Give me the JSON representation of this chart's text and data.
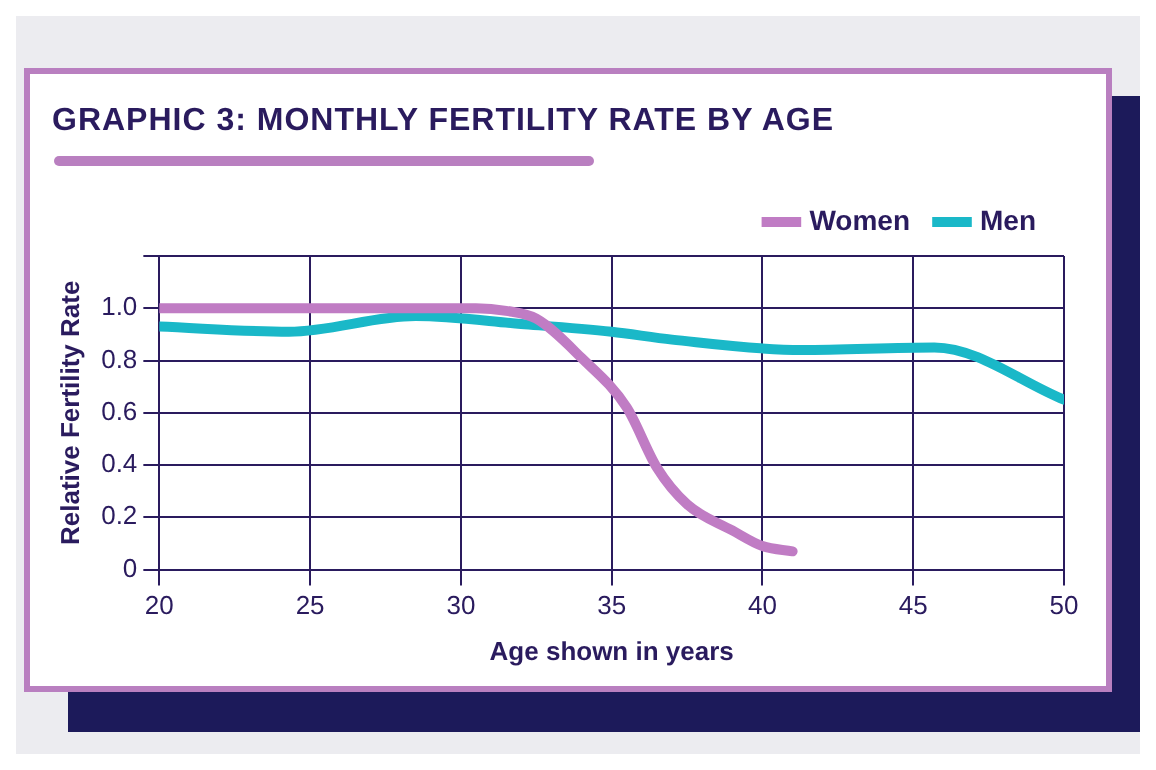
{
  "chart_data": {
    "type": "line",
    "title": "GRAPHIC 3: MONTHLY FERTILITY RATE BY AGE",
    "xlabel": "Age shown in years",
    "ylabel": "Relative Fertility Rate",
    "xlim": [
      20,
      50
    ],
    "xticks": [
      20,
      25,
      30,
      35,
      40,
      45,
      50
    ],
    "ylim": [
      0,
      1.2
    ],
    "yticks": [
      0,
      0.2,
      0.4,
      0.6,
      0.8,
      {
        "value": 1.0,
        "label": "1.0"
      },
      {
        "value": 1.2,
        "label": null
      }
    ],
    "grid": true,
    "legend": "top right",
    "marker": "none",
    "line_style": "solid",
    "series": [
      {
        "name": "Women",
        "color": "#c07cc4",
        "x": [
          20,
          30.5,
          31.5,
          32.5,
          34,
          35.5,
          36.5,
          37.5,
          39,
          40,
          41
        ],
        "values": [
          1.0,
          1.0,
          0.99,
          0.96,
          0.81,
          0.62,
          0.39,
          0.25,
          0.15,
          0.09,
          0.07
        ]
      },
      {
        "name": "Men",
        "color": "#1ab8c8",
        "x": [
          20,
          24.3,
          28.5,
          32,
          35,
          37,
          41.3,
          45.7,
          50
        ],
        "values": [
          0.93,
          0.91,
          0.97,
          0.94,
          0.91,
          0.88,
          0.84,
          0.85,
          0.65
        ]
      }
    ]
  }
}
